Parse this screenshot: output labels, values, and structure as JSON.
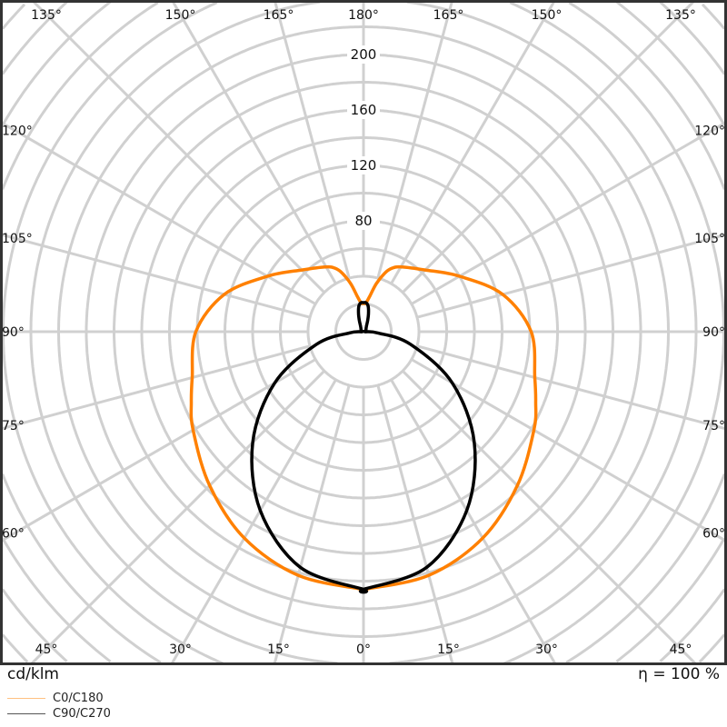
{
  "chart_data": {
    "type": "polar",
    "unit_label": "cd/klm",
    "efficiency_label": "η = 100 %",
    "radial_ticks": [
      80,
      120,
      160,
      200
    ],
    "radial_grid_step": 20,
    "angle_labels": {
      "top": [
        "135°",
        "150°",
        "165°",
        "180°",
        "165°",
        "150°",
        "135°"
      ],
      "left": [
        "120°",
        "105°",
        "90°",
        "75°",
        "60°"
      ],
      "right": [
        "120°",
        "105°",
        "90°",
        "75°",
        "60°"
      ],
      "bottom": [
        "45°",
        "30°",
        "15°",
        "0°",
        "15°",
        "30°",
        "45°"
      ]
    },
    "grid": true,
    "legend_position": "bottom-left",
    "series": [
      {
        "name": "C0/C180",
        "color": "#ff8000",
        "gamma": [
          0,
          15,
          30,
          45,
          60,
          68,
          75,
          90,
          105,
          120,
          135,
          150,
          156,
          160,
          165,
          170,
          175,
          180
        ],
        "values": [
          186,
          182,
          172,
          157,
          142,
          134,
          128,
          121,
          104,
          80,
          63,
          54,
          50,
          45,
          36,
          26,
          21,
          20
        ]
      },
      {
        "name": "C90/C270",
        "color": "#000000",
        "gamma": [
          0,
          15,
          30,
          45,
          60,
          75,
          85,
          90,
          120,
          150,
          160,
          165,
          170,
          175,
          180
        ],
        "values": [
          186,
          176,
          149,
          113,
          74,
          35,
          10,
          1,
          2,
          4,
          9,
          14,
          19,
          21,
          21
        ]
      }
    ]
  }
}
